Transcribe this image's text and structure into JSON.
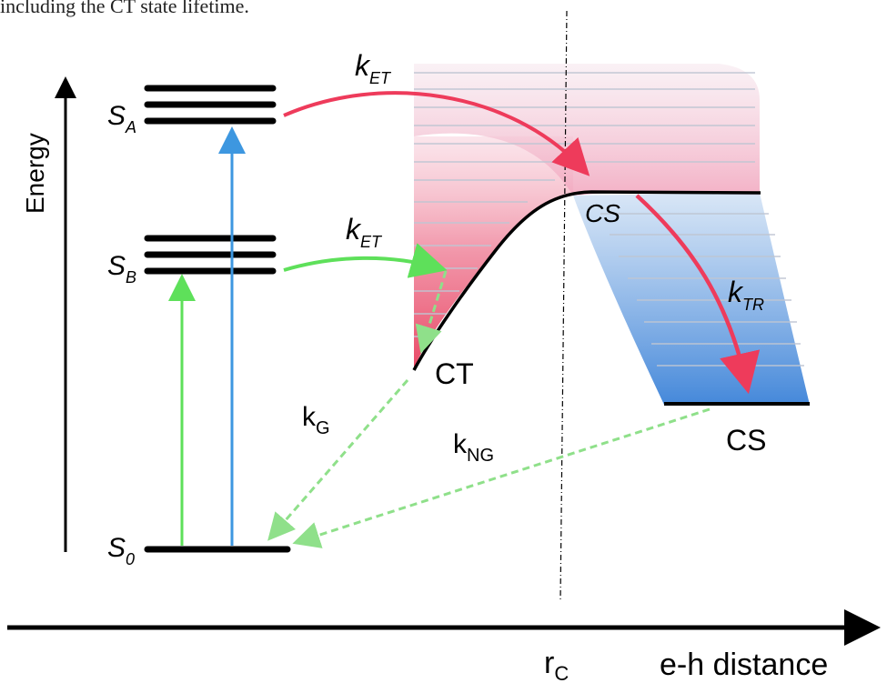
{
  "caption": "including the CT state lifetime.",
  "axes": {
    "y_label": "Energy",
    "x_label": "e-h distance",
    "rc_label": "r",
    "rc_sub": "C"
  },
  "levels": {
    "sa": {
      "main": "S",
      "sub": "A"
    },
    "sb": {
      "main": "S",
      "sub": "B"
    },
    "s0": {
      "main": "S",
      "sub": "0"
    }
  },
  "rates": {
    "k_et_top": {
      "main": "k",
      "sub": "ET"
    },
    "k_et_mid": {
      "main": "k",
      "sub": "ET"
    },
    "k_tr": {
      "main": "k",
      "sub": "TR"
    },
    "k_g": {
      "main": "k",
      "sub": "G"
    },
    "k_ng": {
      "main": "k",
      "sub": "NG"
    }
  },
  "states": {
    "ct": "CT",
    "cs_upper": "CS",
    "cs_lower": "CS"
  },
  "colors": {
    "red_arrow": "#ee3b5b",
    "green_arrow": "#5ee05a",
    "blue_arrow": "#3d97e0",
    "dashed_green": "#8fe08a"
  }
}
